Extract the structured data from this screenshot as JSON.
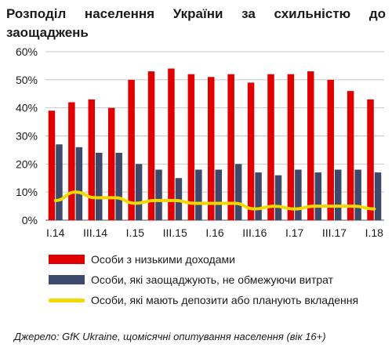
{
  "title": "Розподіл населення України за схильністю до заощаджень",
  "source": "Джерело: GfK Ukraine, щомісячні опитування населення (вік 16+)",
  "colors": {
    "low_income": "#e00000",
    "savers": "#3d4a6b",
    "deposits": "#f5d800",
    "grid": "#c8c8c8"
  },
  "chart_data": {
    "type": "bar",
    "categories": [
      "I.14",
      "II.14",
      "III.14",
      "IV.14",
      "I.15",
      "II.15",
      "III.15",
      "IV.15",
      "I.16",
      "II.16",
      "III.16",
      "IV.16",
      "I.17",
      "II.17",
      "III.17",
      "IV.17",
      "I.18"
    ],
    "x_tick_labels": [
      "I.14",
      "",
      "III.14",
      "",
      "I.15",
      "",
      "III.15",
      "",
      "I.16",
      "",
      "III.16",
      "",
      "I.17",
      "",
      "III.17",
      "",
      "I.18"
    ],
    "y_tick_labels": [
      "0%",
      "10%",
      "20%",
      "30%",
      "40%",
      "50%",
      "60%"
    ],
    "ylim": [
      0,
      60
    ],
    "grid": true,
    "legend_position": "bottom",
    "series": [
      {
        "name": "Особи з низькими доходами",
        "type": "bar",
        "values": [
          39,
          42,
          43,
          40,
          50,
          53,
          54,
          52,
          51,
          52,
          49,
          52,
          52,
          53,
          50,
          46,
          43
        ]
      },
      {
        "name": "Особи, які заощаджують, не обмежуючи витрат",
        "type": "bar",
        "values": [
          27,
          26,
          24,
          24,
          20,
          18,
          15,
          18,
          18,
          20,
          17,
          16,
          18,
          17,
          18,
          18,
          17
        ]
      },
      {
        "name": "Особи, які мають депозити або планують вкладення",
        "type": "line",
        "values": [
          7,
          10,
          8,
          8,
          6,
          7,
          7,
          6,
          6,
          6,
          4,
          5,
          4,
          5,
          5,
          5,
          4
        ]
      }
    ]
  }
}
